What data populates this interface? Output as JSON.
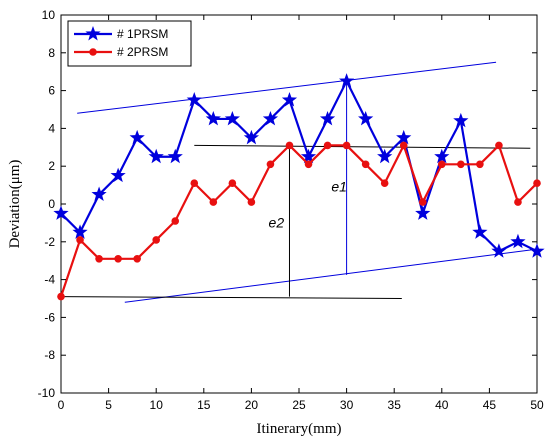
{
  "chart_data": {
    "type": "line",
    "xlabel": "Itinerary(mm)",
    "ylabel": "Deviation(μm)",
    "xlim": [
      0,
      50
    ],
    "ylim": [
      -10,
      10
    ],
    "xticks": [
      0,
      5,
      10,
      15,
      20,
      25,
      30,
      35,
      40,
      45,
      50
    ],
    "yticks": [
      -10,
      -8,
      -6,
      -4,
      -2,
      0,
      2,
      4,
      6,
      8,
      10
    ],
    "grid": false,
    "legend_position": "top-left",
    "series": [
      {
        "name": "# 1PRSM",
        "color": "#0000dd",
        "marker": "star",
        "x": [
          0,
          2,
          4,
          6,
          8,
          10,
          12,
          14,
          16,
          18,
          20,
          22,
          24,
          26,
          28,
          30,
          32,
          34,
          36,
          38,
          40,
          42,
          44,
          46,
          48,
          50
        ],
        "y": [
          -0.5,
          -1.5,
          0.5,
          1.5,
          3.5,
          2.5,
          2.5,
          5.5,
          4.5,
          4.5,
          3.5,
          4.5,
          5.5,
          2.5,
          4.5,
          6.5,
          4.5,
          2.5,
          3.5,
          -0.5,
          2.5,
          4.4,
          -1.5,
          -2.5,
          -2.0,
          -2.5
        ]
      },
      {
        "name": "# 2PRSM",
        "color": "#e81010",
        "marker": "circle",
        "x": [
          0,
          2,
          4,
          6,
          8,
          10,
          12,
          14,
          16,
          18,
          20,
          22,
          24,
          26,
          28,
          30,
          32,
          34,
          36,
          38,
          40,
          42,
          44,
          46,
          48,
          50
        ],
        "y": [
          -4.9,
          -1.9,
          -2.9,
          -2.9,
          -2.9,
          -1.9,
          -0.9,
          1.1,
          0.1,
          1.1,
          0.1,
          2.1,
          3.1,
          2.1,
          3.1,
          3.1,
          2.1,
          1.1,
          3.1,
          0.1,
          2.1,
          2.1,
          2.1,
          3.1,
          0.1,
          1.1
        ]
      }
    ],
    "annotations": [
      {
        "label": "e1",
        "x": 28.4,
        "y": 0.65
      },
      {
        "label": "e2",
        "x": 21.8,
        "y": -1.25
      }
    ],
    "reference_lines": [
      {
        "color": "#0000dd",
        "x1": 1.7,
        "y1": 4.8,
        "x2": 45.7,
        "y2": 7.5
      },
      {
        "color": "#0000dd",
        "x1": 6.7,
        "y1": -5.2,
        "x2": 49.8,
        "y2": -2.4
      },
      {
        "color": "#000000",
        "x1": 14.0,
        "y1": 3.1,
        "x2": 49.3,
        "y2": 2.95
      },
      {
        "color": "#000000",
        "x1": 0.0,
        "y1": -4.9,
        "x2": 35.8,
        "y2": -5.0
      },
      {
        "color": "#000000",
        "x1": 24.0,
        "y1": 3.1,
        "x2": 24.0,
        "y2": -4.9
      },
      {
        "color": "#0000dd",
        "x1": 30.0,
        "y1": 6.5,
        "x2": 30.0,
        "y2": -3.75
      }
    ]
  }
}
